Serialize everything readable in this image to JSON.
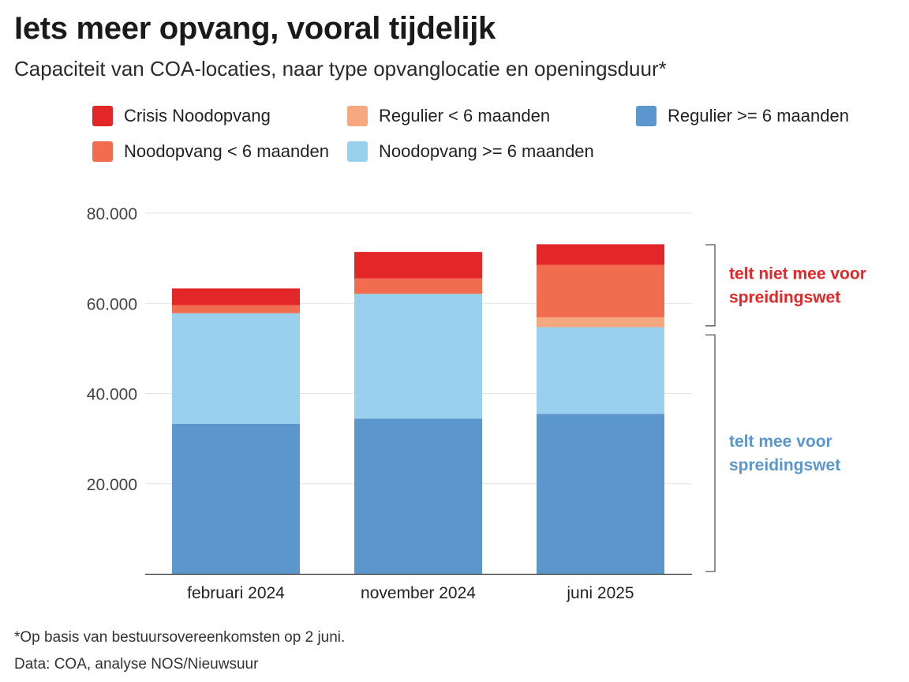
{
  "header": {
    "title": "Iets meer opvang, vooral tijdelijk",
    "subtitle": "Capaciteit van COA-locaties, naar type opvanglocatie en openingsduur*"
  },
  "legend": [
    {
      "label": "Crisis Noodopvang",
      "color": "#e32728"
    },
    {
      "label": "Regulier < 6 maanden",
      "color": "#f5a880"
    },
    {
      "label": "Regulier >= 6 maanden",
      "color": "#5b97cc"
    },
    {
      "label": "Noodopvang < 6 maanden",
      "color": "#f26d4f"
    },
    {
      "label": "Noodopvang >= 6 maanden",
      "color": "#99d0ee"
    }
  ],
  "chart_data": {
    "type": "bar",
    "stacked": true,
    "categories": [
      "februari 2024",
      "november 2024",
      "juni 2025"
    ],
    "series": [
      {
        "name": "Regulier >= 6 maanden",
        "color": "#5b97cc",
        "values": [
          33300,
          34400,
          35500
        ]
      },
      {
        "name": "Noodopvang >= 6 maanden",
        "color": "#99d0ee",
        "values": [
          24500,
          27700,
          19200
        ]
      },
      {
        "name": "Regulier < 6 maanden",
        "color": "#f5a880",
        "values": [
          0,
          0,
          2200
        ]
      },
      {
        "name": "Noodopvang < 6 maanden",
        "color": "#f26d4f",
        "values": [
          1800,
          3400,
          11600
        ]
      },
      {
        "name": "Crisis Noodopvang",
        "color": "#e32728",
        "values": [
          3700,
          5900,
          4600
        ]
      }
    ],
    "ylim": [
      0,
      80000
    ],
    "yticks": [
      20000,
      40000,
      60000,
      80000
    ],
    "ytick_labels": [
      "20.000",
      "40.000",
      "60.000",
      "80.000"
    ],
    "grid": true,
    "annotations": [
      {
        "text_lines": [
          "telt niet mee voor",
          "spreidingswet"
        ],
        "color": "#e32728",
        "range": [
          55000,
          73000
        ]
      },
      {
        "text_lines": [
          "telt mee voor",
          "spreidingswet"
        ],
        "color": "#5b97cc",
        "range": [
          0,
          53000
        ]
      }
    ]
  },
  "footer": {
    "note": "*Op basis van bestuursovereenkomsten op 2 juni.",
    "source": "Data:  COA, analyse NOS/Nieuwsuur"
  }
}
